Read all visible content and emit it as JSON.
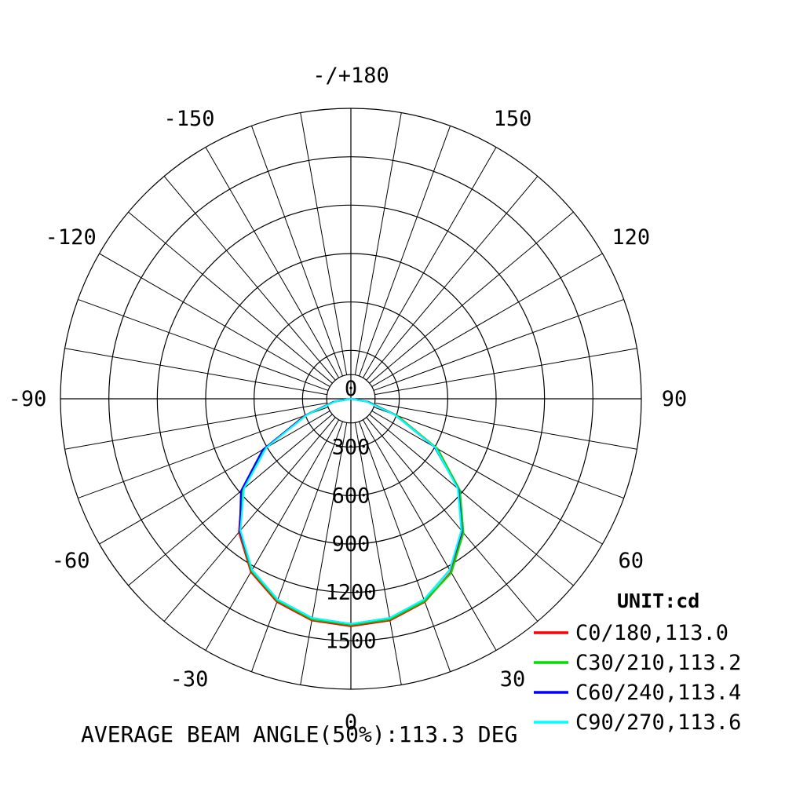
{
  "chart_data": {
    "type": "polar",
    "unit_label": "UNIT:cd",
    "footer": "AVERAGE BEAM ANGLE(50%):113.3 DEG",
    "center_label": "0",
    "angle_labels": [
      {
        "angle": 180,
        "text": "-/+180"
      },
      {
        "angle": -150,
        "text": "-150"
      },
      {
        "angle": 150,
        "text": "150"
      },
      {
        "angle": -120,
        "text": "-120"
      },
      {
        "angle": 120,
        "text": "120"
      },
      {
        "angle": -90,
        "text": "-90"
      },
      {
        "angle": 90,
        "text": "90"
      },
      {
        "angle": -60,
        "text": "-60"
      },
      {
        "angle": 60,
        "text": "60"
      },
      {
        "angle": -30,
        "text": "-30"
      },
      {
        "angle": 30,
        "text": "30"
      },
      {
        "angle": 0,
        "text": "0"
      }
    ],
    "radial_ticks": [
      300,
      600,
      900,
      1200,
      1500
    ],
    "radial_max": 1800,
    "grid": true,
    "legend_position": "bottom-right",
    "series": [
      {
        "name": "C0/180,113.0",
        "color": "#ff0000",
        "angles": [
          -90,
          -80,
          -70,
          -60,
          -50,
          -40,
          -30,
          -20,
          -10,
          0,
          10,
          20,
          30,
          40,
          50,
          60,
          70,
          80,
          90
        ],
        "values": [
          0,
          110,
          305,
          620,
          880,
          1080,
          1240,
          1340,
          1395,
          1410,
          1395,
          1340,
          1240,
          1080,
          880,
          620,
          305,
          110,
          0
        ]
      },
      {
        "name": "C30/210,113.2",
        "color": "#00dd00",
        "angles": [
          -90,
          -80,
          -70,
          -60,
          -50,
          -40,
          -30,
          -20,
          -10,
          0,
          10,
          20,
          30,
          40,
          50,
          60,
          70,
          80,
          90
        ],
        "values": [
          0,
          108,
          300,
          612,
          872,
          1072,
          1232,
          1332,
          1388,
          1402,
          1388,
          1335,
          1245,
          1085,
          882,
          618,
          302,
          108,
          0
        ]
      },
      {
        "name": "C60/240,113.4",
        "color": "#0000ff",
        "angles": [
          -90,
          -80,
          -70,
          -60,
          -50,
          -40,
          -30,
          -20,
          -10,
          0,
          10,
          20,
          30,
          40,
          50,
          60,
          70,
          80,
          90
        ],
        "values": [
          0,
          105,
          295,
          630,
          890,
          1070,
          1225,
          1325,
          1380,
          1395,
          1380,
          1325,
          1225,
          1070,
          870,
          600,
          290,
          105,
          0
        ]
      },
      {
        "name": "C90/270,113.6",
        "color": "#00ffff",
        "angles": [
          -90,
          -80,
          -70,
          -60,
          -50,
          -40,
          -30,
          -20,
          -10,
          0,
          10,
          20,
          30,
          40,
          50,
          60,
          70,
          80,
          90
        ],
        "values": [
          0,
          100,
          290,
          605,
          865,
          1065,
          1225,
          1325,
          1380,
          1395,
          1380,
          1325,
          1225,
          1065,
          865,
          605,
          290,
          100,
          0
        ]
      }
    ]
  }
}
